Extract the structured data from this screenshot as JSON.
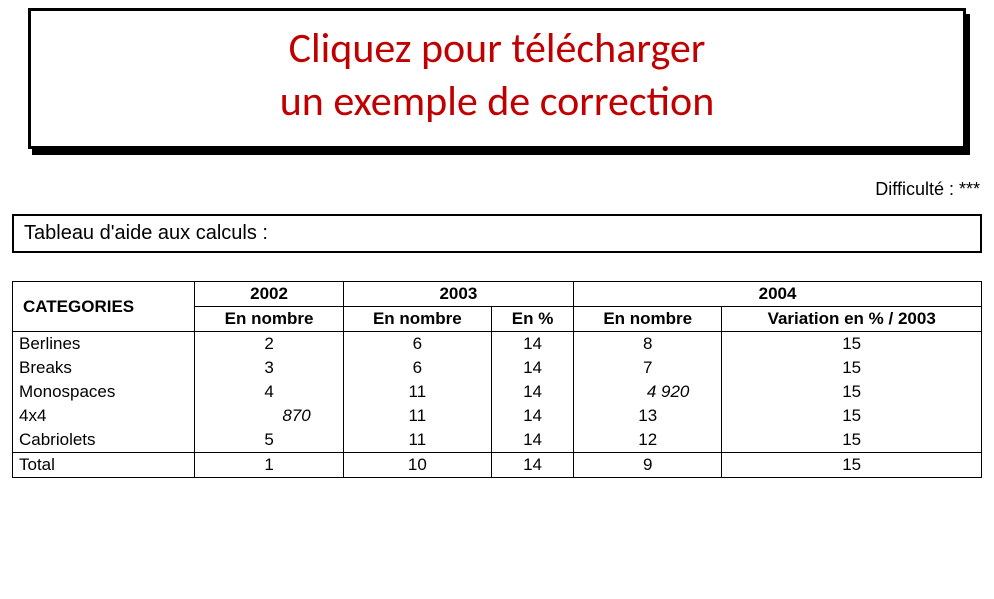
{
  "banner": {
    "line1": "Cliquez pour télécharger",
    "line2": "un exemple de correction"
  },
  "difficulty_label": "Difficulté : ***",
  "section_title": "Tableau d'aide aux calculs :",
  "table": {
    "header": {
      "categories": "CATEGORIES",
      "y2002": "2002",
      "y2003": "2003",
      "y2004": "2004",
      "en_nombre": "En nombre",
      "en_pct": "En %",
      "variation": "Variation en % / 2003"
    },
    "rows": [
      {
        "cat": "Berlines",
        "c2002": "2",
        "c2002_right": "",
        "c2003n": "6",
        "c2003p": "14",
        "c2004n": "8",
        "c2004n_right": "",
        "c2004v": "15"
      },
      {
        "cat": "Breaks",
        "c2002": "3",
        "c2002_right": "",
        "c2003n": "6",
        "c2003p": "14",
        "c2004n": "7",
        "c2004n_right": "",
        "c2004v": "15"
      },
      {
        "cat": "Monospaces",
        "c2002": "4",
        "c2002_right": "",
        "c2003n": "11",
        "c2003p": "14",
        "c2004n": "",
        "c2004n_right": "4 920",
        "c2004v": "15"
      },
      {
        "cat": "4x4",
        "c2002": "",
        "c2002_right": "870",
        "c2003n": "11",
        "c2003p": "14",
        "c2004n": "13",
        "c2004n_right": "",
        "c2004v": "15"
      },
      {
        "cat": "Cabriolets",
        "c2002": "5",
        "c2002_right": "",
        "c2003n": "11",
        "c2003p": "14",
        "c2004n": "12",
        "c2004n_right": "",
        "c2004v": "15"
      }
    ],
    "total": {
      "cat": "Total",
      "c2002": "1",
      "c2003n": "10",
      "c2003p": "14",
      "c2004n": "9",
      "c2004v": "15"
    }
  }
}
